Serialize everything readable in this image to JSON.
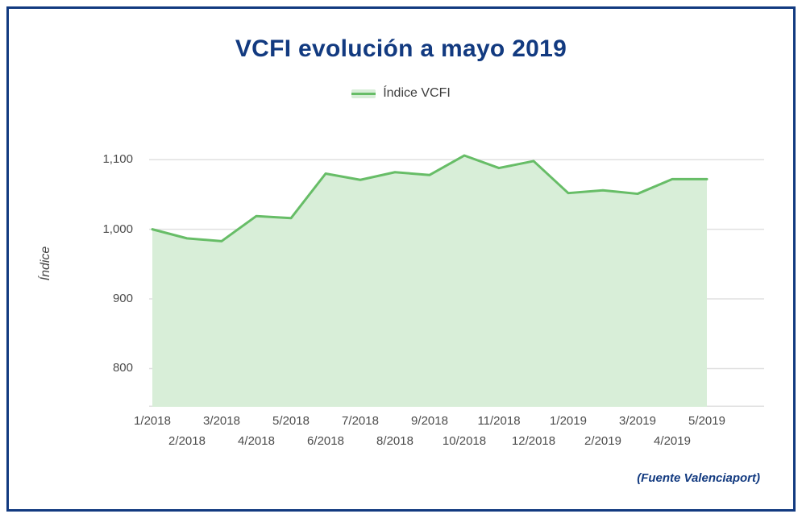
{
  "page": {
    "title": "VCFI evolución a mayo 2019",
    "source_note": "(Fuente Valenciaport)",
    "colors": {
      "navy": "#123a80",
      "line_green": "#67bd67",
      "area_fill": "#d8eed8",
      "gridline": "#e0e0e0",
      "tick_text": "#4c4c4c"
    }
  },
  "legend": {
    "label": "Índice VCFI"
  },
  "chart_data": {
    "type": "area",
    "title": "VCFI evolución a mayo 2019",
    "series_name": "Índice VCFI",
    "xlabel": "",
    "ylabel": "Índice",
    "categories": [
      "1/2018",
      "2/2018",
      "3/2018",
      "4/2018",
      "5/2018",
      "6/2018",
      "7/2018",
      "8/2018",
      "9/2018",
      "10/2018",
      "11/2018",
      "12/2018",
      "1/2019",
      "2/2019",
      "3/2019",
      "4/2019",
      "5/2019"
    ],
    "values": [
      1000,
      987,
      983,
      1019,
      1016,
      1080,
      1071,
      1082,
      1078,
      1106,
      1088,
      1098,
      1052,
      1056,
      1051,
      1072,
      1072
    ],
    "ylim": [
      745,
      1150
    ],
    "yticks": [
      800,
      900,
      1000,
      1100
    ],
    "grid": true,
    "legend_position": "top"
  }
}
